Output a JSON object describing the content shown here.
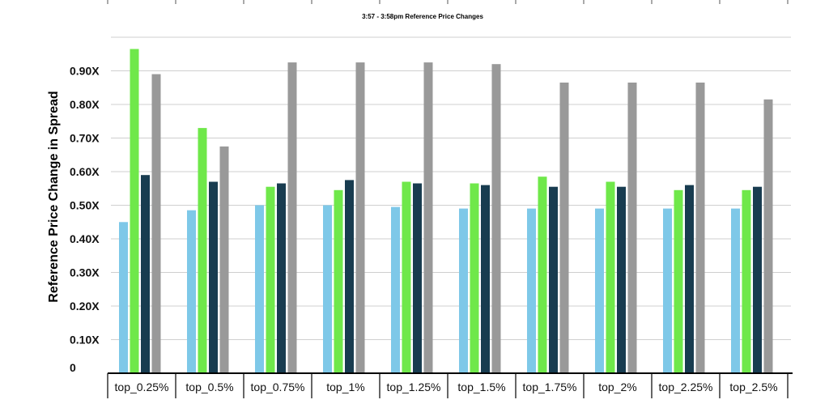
{
  "chart_data": {
    "type": "bar",
    "title": "3:57 - 3:58pm Reference Price Changes",
    "xlabel": "",
    "ylabel": "Reference Price Change in Spread",
    "ylim": [
      0,
      1.0
    ],
    "yticks": [
      "0",
      "0.10X",
      "0.20X",
      "0.30X",
      "0.40X",
      "0.50X",
      "0.60X",
      "0.70X",
      "0.80X",
      "0.90X"
    ],
    "categories": [
      "top_0.25%",
      "top_0.5%",
      "top_0.75%",
      "top_1%",
      "top_1.25%",
      "top_1.5%",
      "top_1.75%",
      "top_2%",
      "top_2.25%",
      "top_2.5%"
    ],
    "grid": true,
    "legend": "none",
    "series": [
      {
        "color": "#7ec8e8",
        "values": [
          0.45,
          0.485,
          0.5,
          0.5,
          0.495,
          0.49,
          0.49,
          0.49,
          0.49,
          0.49
        ]
      },
      {
        "color": "#6fe84a",
        "values": [
          0.965,
          0.73,
          0.555,
          0.545,
          0.57,
          0.565,
          0.585,
          0.57,
          0.545,
          0.545
        ]
      },
      {
        "color": "#183c50",
        "values": [
          0.59,
          0.57,
          0.565,
          0.575,
          0.565,
          0.56,
          0.555,
          0.555,
          0.56,
          0.555
        ]
      },
      {
        "color": "#999999",
        "values": [
          0.89,
          0.675,
          0.925,
          0.925,
          0.925,
          0.92,
          0.865,
          0.865,
          0.865,
          0.815
        ]
      }
    ]
  }
}
